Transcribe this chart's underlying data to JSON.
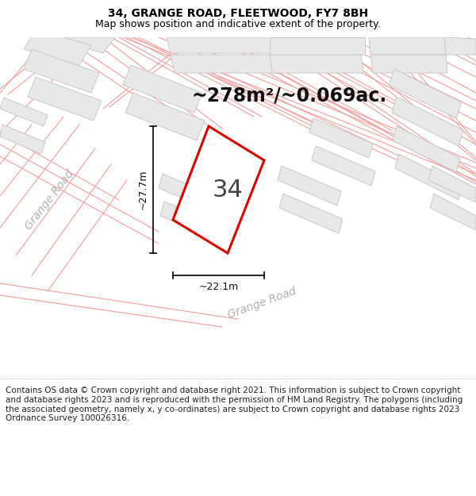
{
  "title": "34, GRANGE ROAD, FLEETWOOD, FY7 8BH",
  "subtitle": "Map shows position and indicative extent of the property.",
  "area_text": "~278m²/~0.069ac.",
  "width_label": "~22.1m",
  "height_label": "~27.7m",
  "number_label": "34",
  "road_label_1": "Grange Road",
  "road_label_2": "Grange Road",
  "copyright_text": "Contains OS data © Crown copyright and database right 2021. This information is subject to Crown copyright and database rights 2023 and is reproduced with the permission of HM Land Registry. The polygons (including the associated geometry, namely x, y co-ordinates) are subject to Crown copyright and database rights 2023 Ordnance Survey 100026316.",
  "bg_color": "#ffffff",
  "map_bg": "#ffffff",
  "building_fill": "#e8e8e8",
  "building_edge": "#c8c8c8",
  "road_line_color": "#f0a0a0",
  "property_outline": "#dd0000",
  "dim_line_color": "#000000",
  "road_text_color": "#b0b0b0",
  "title_fontsize": 10,
  "subtitle_fontsize": 9,
  "area_fontsize": 17,
  "number_fontsize": 22,
  "label_fontsize": 9,
  "copyright_fontsize": 7.5
}
